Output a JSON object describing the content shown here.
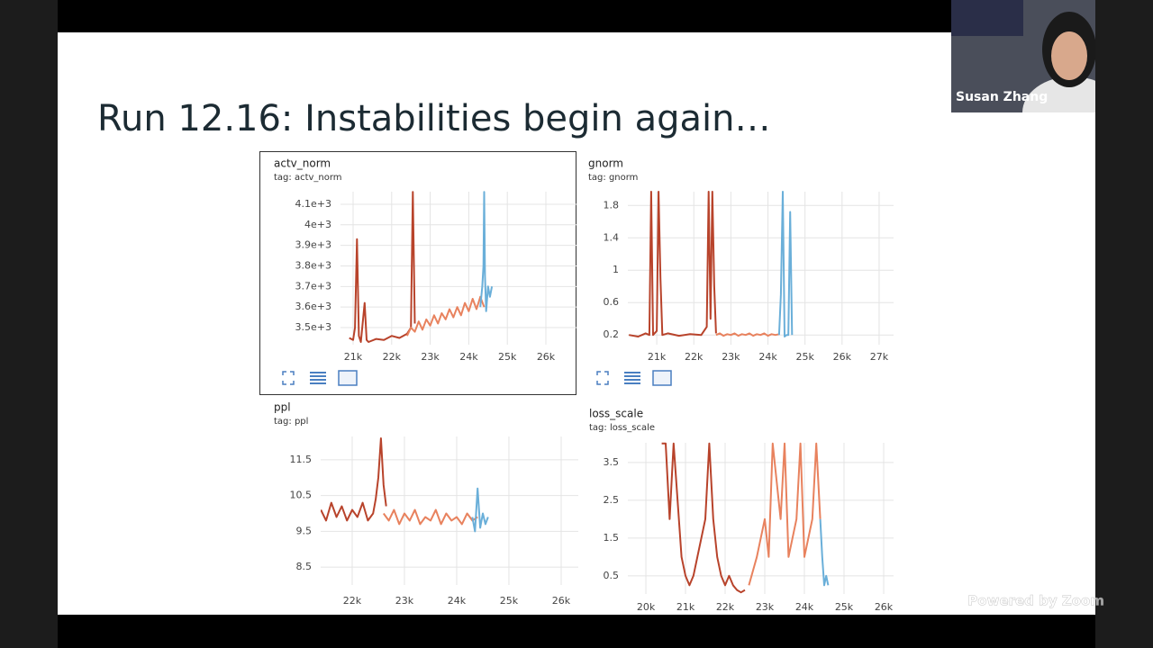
{
  "slide": {
    "title": "Run 12.16: Instabilities begin again…"
  },
  "participant": {
    "name": "Susan Zhang"
  },
  "watermark": "Powered by Zoom",
  "chart_data": [
    {
      "type": "line",
      "title": "actv_norm",
      "subtitle": "tag: actv_norm",
      "grid": true,
      "xlim": [
        20673,
        26794
      ],
      "ylim": [
        3417,
        4161
      ],
      "xticks": [
        {
          "value": 21000,
          "label": "21k"
        },
        {
          "value": 22000,
          "label": "22k"
        },
        {
          "value": 23000,
          "label": "23k"
        },
        {
          "value": 24000,
          "label": "24k"
        },
        {
          "value": 25000,
          "label": "25k"
        },
        {
          "value": 26000,
          "label": "26k"
        }
      ],
      "yticks": [
        {
          "value": 3500,
          "label": "3.5e+3"
        },
        {
          "value": 3600,
          "label": "3.6e+3"
        },
        {
          "value": 3700,
          "label": "3.7e+3"
        },
        {
          "value": 3800,
          "label": "3.8e+3"
        },
        {
          "value": 3900,
          "label": "3.9e+3"
        },
        {
          "value": 4000,
          "label": "4e+3"
        },
        {
          "value": 4100,
          "label": "4.1e+3"
        }
      ],
      "series": [
        {
          "color": "#b8432b",
          "x": [
            20900,
            21000,
            21050,
            21100,
            21150,
            21200,
            21300,
            21350,
            21400,
            21600,
            21800,
            22000,
            22200,
            22400,
            22500,
            22550,
            22600
          ],
          "values": [
            3450,
            3440,
            3500,
            3930,
            3460,
            3430,
            3620,
            3440,
            3430,
            3445,
            3440,
            3460,
            3450,
            3470,
            3500,
            4160,
            3520
          ]
        },
        {
          "color": "#e8825e",
          "x": [
            22400,
            22500,
            22600,
            22700,
            22800,
            22900,
            23000,
            23100,
            23200,
            23300,
            23400,
            23500,
            23600,
            23700,
            23800,
            23900,
            24000,
            24100,
            24200,
            24300,
            24400
          ],
          "values": [
            3460,
            3500,
            3480,
            3530,
            3490,
            3540,
            3510,
            3560,
            3520,
            3570,
            3540,
            3590,
            3550,
            3600,
            3560,
            3620,
            3580,
            3640,
            3590,
            3650,
            3600
          ]
        },
        {
          "color": "#6aafd9",
          "x": [
            24300,
            24350,
            24380,
            24400,
            24420,
            24450,
            24500,
            24550,
            24600
          ],
          "values": [
            3600,
            3700,
            3800,
            4160,
            3750,
            3580,
            3700,
            3650,
            3700
          ]
        }
      ]
    },
    {
      "type": "line",
      "title": "gnorm",
      "subtitle": "tag: gnorm",
      "grid": true,
      "xlim": [
        20220,
        27390
      ],
      "ylim": [
        0.08,
        1.97
      ],
      "xticks": [
        {
          "value": 21000,
          "label": "21k"
        },
        {
          "value": 22000,
          "label": "22k"
        },
        {
          "value": 23000,
          "label": "23k"
        },
        {
          "value": 24000,
          "label": "24k"
        },
        {
          "value": 25000,
          "label": "25k"
        },
        {
          "value": 26000,
          "label": "26k"
        },
        {
          "value": 27000,
          "label": "27k"
        }
      ],
      "yticks": [
        0.2,
        0.6,
        1,
        1.4,
        1.8
      ],
      "series": [
        {
          "color": "#b8432b",
          "x": [
            20250,
            20500,
            20700,
            20800,
            20850,
            20900,
            21000,
            21050,
            21100,
            21150,
            21300,
            21600,
            21900,
            22200,
            22350,
            22400,
            22450,
            22500,
            22550,
            22600
          ],
          "values": [
            0.2,
            0.18,
            0.22,
            0.2,
            1.97,
            0.2,
            0.25,
            1.97,
            0.9,
            0.2,
            0.22,
            0.19,
            0.21,
            0.2,
            0.3,
            1.97,
            0.4,
            1.97,
            0.8,
            0.22
          ]
        },
        {
          "color": "#e8825e",
          "x": [
            22600,
            22700,
            22800,
            22900,
            23000,
            23100,
            23200,
            23300,
            23400,
            23500,
            23600,
            23700,
            23800,
            23900,
            24000,
            24100,
            24200,
            24300
          ],
          "values": [
            0.2,
            0.22,
            0.19,
            0.21,
            0.2,
            0.22,
            0.19,
            0.21,
            0.2,
            0.22,
            0.19,
            0.21,
            0.2,
            0.22,
            0.19,
            0.21,
            0.2,
            0.21
          ]
        },
        {
          "color": "#6aafd9",
          "x": [
            24300,
            24350,
            24400,
            24450,
            24500,
            24550,
            24600,
            24650
          ],
          "values": [
            0.2,
            0.7,
            1.97,
            0.18,
            0.2,
            0.2,
            1.72,
            0.2
          ]
        }
      ]
    },
    {
      "type": "line",
      "title": "ppl",
      "subtitle": "tag: ppl",
      "grid": true,
      "xlim": [
        21397,
        26328
      ],
      "ylim": [
        8,
        12.15
      ],
      "xticks": [
        {
          "value": 22000,
          "label": "22k"
        },
        {
          "value": 23000,
          "label": "23k"
        },
        {
          "value": 24000,
          "label": "24k"
        },
        {
          "value": 25000,
          "label": "25k"
        },
        {
          "value": 26000,
          "label": "26k"
        }
      ],
      "yticks": [
        8.5,
        9.5,
        10.5,
        11.5
      ],
      "series": [
        {
          "color": "#b8432b",
          "x": [
            21400,
            21500,
            21600,
            21700,
            21800,
            21900,
            22000,
            22100,
            22200,
            22300,
            22400,
            22450,
            22500,
            22550,
            22600,
            22650
          ],
          "values": [
            10.1,
            9.8,
            10.3,
            9.9,
            10.2,
            9.8,
            10.1,
            9.9,
            10.3,
            9.8,
            10.0,
            10.4,
            11.0,
            12.1,
            10.8,
            10.2
          ]
        },
        {
          "color": "#e8825e",
          "x": [
            22600,
            22700,
            22800,
            22900,
            23000,
            23100,
            23200,
            23300,
            23400,
            23500,
            23600,
            23700,
            23800,
            23900,
            24000,
            24100,
            24200,
            24300,
            24400
          ],
          "values": [
            10.0,
            9.8,
            10.1,
            9.7,
            10.0,
            9.8,
            10.1,
            9.7,
            9.9,
            9.8,
            10.1,
            9.7,
            10.0,
            9.8,
            9.9,
            9.7,
            10.0,
            9.8,
            9.9
          ]
        },
        {
          "color": "#6aafd9",
          "x": [
            24300,
            24350,
            24400,
            24450,
            24500,
            24550,
            24600
          ],
          "values": [
            9.9,
            9.5,
            10.7,
            9.6,
            10.0,
            9.7,
            9.9
          ]
        }
      ]
    },
    {
      "type": "line",
      "title": "loss_scale",
      "subtitle": "tag: loss_scale",
      "grid": true,
      "xlim": [
        19545,
        26250
      ],
      "ylim": [
        0.02,
        4.02
      ],
      "xticks": [
        {
          "value": 20000,
          "label": "20k"
        },
        {
          "value": 21000,
          "label": "21k"
        },
        {
          "value": 22000,
          "label": "22k"
        },
        {
          "value": 23000,
          "label": "23k"
        },
        {
          "value": 24000,
          "label": "24k"
        },
        {
          "value": 25000,
          "label": "25k"
        },
        {
          "value": 26000,
          "label": "26k"
        }
      ],
      "yticks": [
        0.5,
        1.5,
        2.5,
        3.5
      ],
      "series": [
        {
          "color": "#b8432b",
          "x": [
            20400,
            20500,
            20600,
            20700,
            20900,
            21000,
            21100,
            21200,
            21300,
            21500,
            21600,
            21700,
            21800,
            21900,
            22000,
            22100,
            22200,
            22300,
            22400,
            22500
          ],
          "values": [
            4,
            4,
            2,
            4,
            1,
            0.5,
            0.25,
            0.5,
            1,
            2,
            4,
            2,
            1,
            0.5,
            0.25,
            0.5,
            0.25,
            0.125,
            0.0625,
            0.125
          ]
        },
        {
          "color": "#e8825e",
          "x": [
            22600,
            22800,
            23000,
            23100,
            23200,
            23400,
            23500,
            23600,
            23800,
            23900,
            24000,
            24200,
            24300,
            24400
          ],
          "values": [
            0.25,
            1,
            2,
            1,
            4,
            2,
            4,
            1,
            2,
            4,
            1,
            2,
            4,
            2
          ]
        },
        {
          "color": "#6aafd9",
          "x": [
            24400,
            24450,
            24500,
            24550,
            24600
          ],
          "values": [
            2,
            1,
            0.25,
            0.5,
            0.25
          ]
        }
      ]
    }
  ]
}
